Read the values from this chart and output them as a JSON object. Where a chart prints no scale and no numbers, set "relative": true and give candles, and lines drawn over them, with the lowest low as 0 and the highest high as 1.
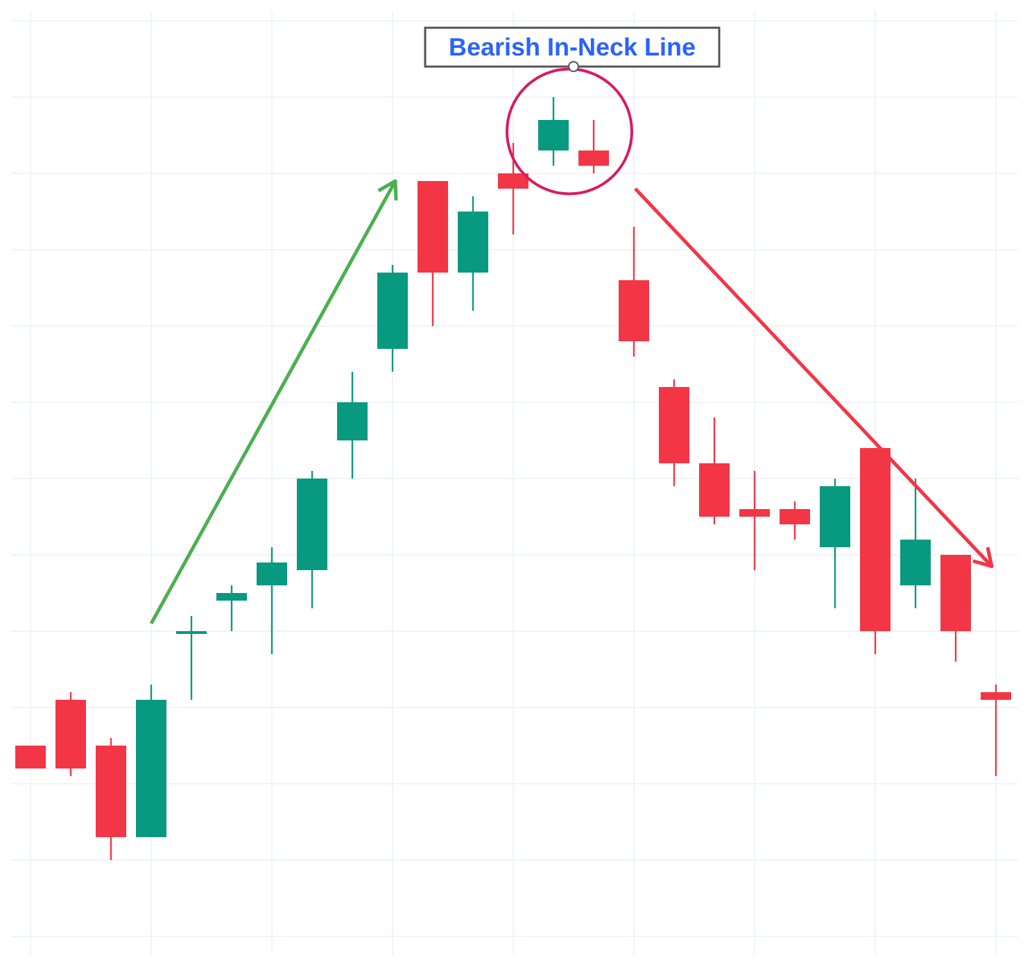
{
  "chart_data": {
    "type": "candlestick",
    "relative": true,
    "grid": true,
    "annotations": [
      "Bearish In-Neck Line"
    ],
    "categories": [
      null,
      null,
      null,
      null,
      null,
      null,
      null,
      null,
      null,
      null,
      null,
      null,
      null,
      null,
      null,
      null,
      null,
      null,
      null,
      null,
      null,
      null,
      null,
      null,
      null
    ],
    "ohlc": [
      [
        0.15,
        0.15,
        0.12,
        0.12
      ],
      [
        0.21,
        0.22,
        0.11,
        0.12
      ],
      [
        0.15,
        0.16,
        0,
        0.03
      ],
      [
        0.03,
        0.23,
        0.03,
        0.21
      ],
      [
        0.3,
        0.32,
        0.21,
        0.3
      ],
      [
        0.34,
        0.36,
        0.3,
        0.35
      ],
      [
        0.36,
        0.41,
        0.27,
        0.39
      ],
      [
        0.38,
        0.51,
        0.33,
        0.5
      ],
      [
        0.55,
        0.64,
        0.5,
        0.6
      ],
      [
        0.67,
        0.78,
        0.64,
        0.77
      ],
      [
        0.89,
        0.89,
        0.7,
        0.77
      ],
      [
        0.77,
        0.87,
        0.72,
        0.85
      ],
      [
        0.9,
        0.94,
        0.82,
        0.88
      ],
      [
        0.93,
        1,
        0.91,
        0.97
      ],
      [
        0.93,
        0.97,
        0.9,
        0.91
      ],
      [
        0.76,
        0.83,
        0.66,
        0.68
      ],
      [
        0.62,
        0.63,
        0.49,
        0.52
      ],
      [
        0.52,
        0.58,
        0.44,
        0.45
      ],
      [
        0.46,
        0.51,
        0.38,
        0.45
      ],
      [
        0.46,
        0.47,
        0.42,
        0.44
      ],
      [
        0.41,
        0.5,
        0.33,
        0.49
      ],
      [
        0.54,
        0.54,
        0.27,
        0.3
      ],
      [
        0.36,
        0.5,
        0.33,
        0.42
      ],
      [
        0.4,
        0.4,
        0.26,
        0.3
      ],
      [
        0.22,
        0.23,
        0.11,
        0.21
      ]
    ],
    "colors": [
      "#f23645",
      "#f23645",
      "#f23645",
      "#089981",
      "#089981",
      "#089981",
      "#089981",
      "#089981",
      "#089981",
      "#089981",
      "#f23645",
      "#089981",
      "#f23645",
      "#089981",
      "#f23645",
      "#f23645",
      "#f23645",
      "#f23645",
      "#f23645",
      "#f23645",
      "#089981",
      "#f23645",
      "#089981",
      "#f23645",
      "#f23645"
    ]
  }
}
